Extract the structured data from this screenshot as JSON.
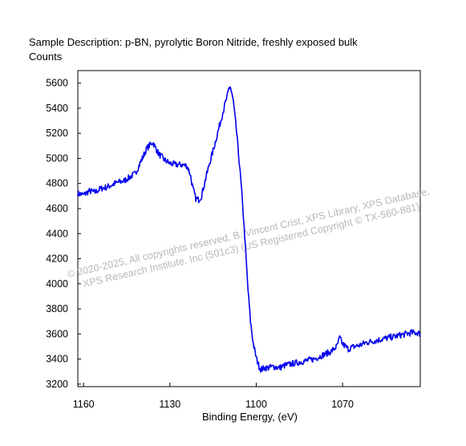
{
  "header": {
    "description": "Sample Description:  p-BN, pyrolytic Boron Nitride, freshly exposed bulk",
    "ylabel": "Counts"
  },
  "footer": {
    "xlabel": "Binding Energy, (eV)"
  },
  "watermark": {
    "line1": "© 2020-2025,  All copyrights reserved,   B. Vincent Crist,  XPS Library, XPS Database,",
    "line2": "XPS Research Institute, Inc (501c3)   (US Registered Copyright © TX-560-881)"
  },
  "colors": {
    "series": "#0000ee",
    "watermark": "#b8b8b8"
  },
  "chart_data": {
    "type": "line",
    "title": "Sample Description:  p-BN, pyrolytic Boron Nitride, freshly exposed bulk",
    "xlabel": "Binding Energy, (eV)",
    "ylabel": "Counts",
    "xlim": [
      1162,
      1043
    ],
    "ylim": [
      3180,
      5700
    ],
    "x_reversed": true,
    "xticks": [
      1160,
      1130,
      1100,
      1070
    ],
    "yticks": [
      3200,
      3400,
      3600,
      3800,
      4000,
      4200,
      4400,
      4600,
      4800,
      5000,
      5200,
      5400,
      5600
    ],
    "grid": false,
    "series": [
      {
        "x": [
          1162,
          1160,
          1158,
          1156,
          1154,
          1152,
          1150,
          1148,
          1146,
          1144,
          1142,
          1140,
          1138,
          1136,
          1134,
          1132,
          1130,
          1128,
          1126,
          1124,
          1123,
          1122,
          1121,
          1120,
          1119,
          1118,
          1117,
          1116,
          1115,
          1114,
          1113,
          1112,
          1111,
          1110,
          1109.5,
          1109,
          1108,
          1107,
          1106,
          1105,
          1104,
          1103,
          1102,
          1101,
          1100,
          1099,
          1098.5,
          1098,
          1097,
          1096,
          1094,
          1092,
          1090,
          1088,
          1086,
          1084,
          1082,
          1080,
          1078,
          1076,
          1074,
          1072,
          1071,
          1070,
          1068,
          1066,
          1064,
          1062,
          1060,
          1058,
          1056,
          1054,
          1052,
          1050,
          1048,
          1046,
          1044,
          1043
        ],
        "values": [
          4720,
          4710,
          4740,
          4730,
          4760,
          4770,
          4790,
          4810,
          4820,
          4850,
          4880,
          4980,
          5080,
          5130,
          5040,
          4990,
          4960,
          4950,
          4950,
          4940,
          4880,
          4760,
          4680,
          4670,
          4700,
          4800,
          4890,
          4980,
          5060,
          5150,
          5240,
          5330,
          5420,
          5500,
          5560,
          5570,
          5460,
          5250,
          5000,
          4720,
          4380,
          4000,
          3700,
          3520,
          3410,
          3340,
          3320,
          3320,
          3330,
          3330,
          3340,
          3330,
          3350,
          3360,
          3370,
          3380,
          3390,
          3400,
          3420,
          3440,
          3460,
          3500,
          3570,
          3520,
          3480,
          3500,
          3510,
          3530,
          3540,
          3550,
          3560,
          3570,
          3580,
          3590,
          3600,
          3610,
          3610,
          3600
        ]
      }
    ]
  }
}
